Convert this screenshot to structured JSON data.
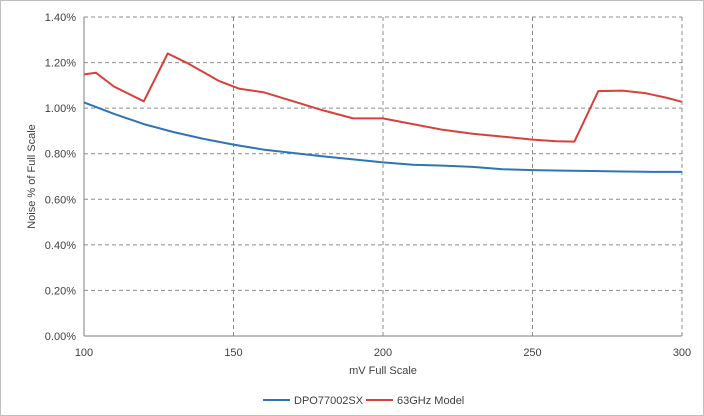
{
  "chart_data": {
    "type": "line",
    "xlabel": "mV Full Scale",
    "ylabel": "Noise % of Full Scale",
    "xlim": [
      100,
      300
    ],
    "ylim": [
      0,
      1.4
    ],
    "x_ticks": [
      100,
      150,
      200,
      250,
      300
    ],
    "x_tick_labels": [
      "100",
      "150",
      "200",
      "250",
      "300"
    ],
    "y_ticks": [
      0,
      0.2,
      0.4,
      0.6,
      0.8,
      1.0,
      1.2,
      1.4
    ],
    "y_tick_labels": [
      "0.00%",
      "0.20%",
      "0.40%",
      "0.60%",
      "0.80%",
      "1.00%",
      "1.20%",
      "1.40%"
    ],
    "grid": "dashed",
    "legend_position": "bottom",
    "series": [
      {
        "name": "DPO77002SX",
        "color": "#2e75b6",
        "x": [
          100,
          110,
          120,
          130,
          140,
          150,
          160,
          170,
          180,
          190,
          200,
          210,
          220,
          230,
          240,
          250,
          260,
          270,
          280,
          290,
          300
        ],
        "values": [
          1.025,
          0.975,
          0.93,
          0.895,
          0.865,
          0.84,
          0.818,
          0.803,
          0.788,
          0.775,
          0.762,
          0.752,
          0.748,
          0.742,
          0.732,
          0.728,
          0.726,
          0.724,
          0.722,
          0.72,
          0.72
        ]
      },
      {
        "name": "63GHz Model",
        "color": "#d9403a",
        "x": [
          100,
          104,
          110,
          120,
          128,
          135,
          145,
          152,
          160,
          170,
          180,
          190,
          200,
          210,
          220,
          230,
          240,
          250,
          258,
          264,
          272,
          280,
          288,
          295,
          300
        ],
        "values": [
          1.148,
          1.155,
          1.095,
          1.03,
          1.24,
          1.195,
          1.12,
          1.085,
          1.07,
          1.03,
          0.99,
          0.955,
          0.955,
          0.93,
          0.905,
          0.888,
          0.875,
          0.862,
          0.855,
          0.853,
          1.075,
          1.077,
          1.065,
          1.045,
          1.028
        ]
      }
    ]
  }
}
